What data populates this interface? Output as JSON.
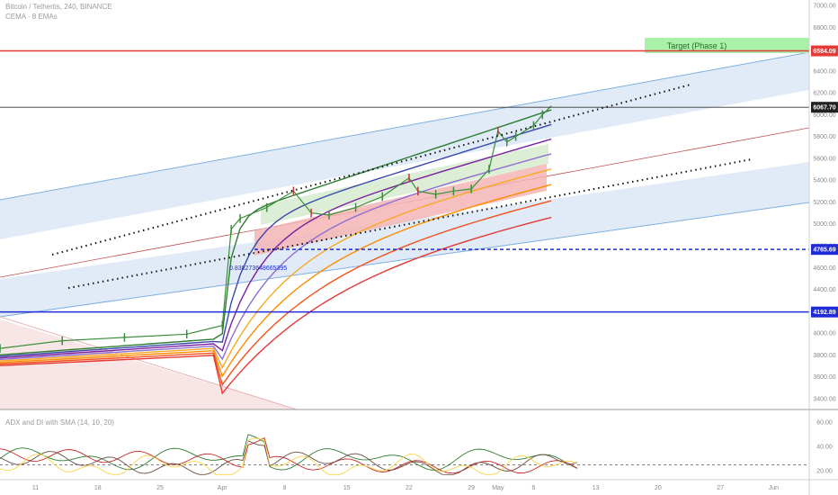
{
  "header": {
    "symbol_line": "Bitcoin / Tethertis, 240, BINANCE",
    "indicator_line": "CEMA · 8 EMAs",
    "sub_indicator": "ADX and DI with SMA (14, 10, 20)"
  },
  "colors": {
    "target_line": "#e53935",
    "price_line": "#333333",
    "support_line": "#1f2bd6",
    "deep_support_line": "#1f2bd6",
    "channel_fill": "#dbe8f6",
    "channel_border": "#7fb0e0",
    "mid_line": "#c0504d",
    "target_box": "#a9f0a9",
    "green_box": "#d8ecd2",
    "red_box": "#f4b5b5",
    "up_candle": "#3a8f3a",
    "down_candle": "#c13a3a"
  },
  "chart_data": {
    "type": "line",
    "title": "Bitcoin / Tethertis, 240, BINANCE",
    "ylabel": "",
    "ylim": [
      3300,
      7050
    ],
    "y_ticks": [
      "7000.00",
      "6800.00",
      "6400.00",
      "6200.00",
      "6000.00",
      "5800.00",
      "5600.00",
      "5400.00",
      "5200.00",
      "5000.00",
      "4800.00",
      "4600.00",
      "4400.00",
      "4200.00",
      "4000.00",
      "3800.00",
      "3600.00",
      "3400.00"
    ],
    "y_tick_values": [
      7000,
      6800,
      6400,
      6200,
      6000,
      5800,
      5600,
      5400,
      5200,
      5000,
      4800,
      4600,
      4400,
      4200,
      4000,
      3800,
      3600,
      3400
    ],
    "x_ticks": [
      "11",
      "18",
      "25",
      "Apr",
      "8",
      "15",
      "22",
      "29",
      "May",
      "6",
      "13",
      "20",
      "27",
      "Jun",
      "1"
    ],
    "x_tick_days": [
      11,
      18,
      25,
      32,
      39,
      46,
      53,
      60,
      63,
      67,
      74,
      81,
      88,
      94,
      100
    ],
    "x_range": [
      7,
      98
    ],
    "series": [
      {
        "name": "",
        "type": "price",
        "x": [
          7,
          14,
          21,
          28,
          32,
          33,
          34,
          37,
          40,
          42,
          44,
          47,
          50,
          53,
          54,
          56,
          58,
          60,
          62,
          63,
          64,
          65,
          67,
          68,
          69
        ],
        "values": [
          3860,
          3930,
          3960,
          3990,
          4070,
          4950,
          5050,
          5150,
          5300,
          5100,
          5080,
          5150,
          5250,
          5420,
          5300,
          5270,
          5300,
          5320,
          5500,
          5850,
          5750,
          5800,
          5900,
          6000,
          6080
        ]
      }
    ],
    "levels": [
      {
        "label": "6584.09",
        "value": 6584.09
      },
      {
        "label": "6067.70",
        "value": 6067.7
      },
      {
        "label": "4765.69",
        "value": 4765.69
      },
      {
        "label": "4192.89",
        "value": 4192.89
      }
    ],
    "annotations": {
      "target": "Target (Phase 1)",
      "fib_label": "0.838273648665395"
    }
  },
  "adx_chart": {
    "type": "line",
    "y_ticks": [
      "60.00",
      "40.00",
      "20.00"
    ],
    "y_tick_values": [
      60,
      40,
      20
    ],
    "ylim": [
      15,
      65
    ]
  }
}
